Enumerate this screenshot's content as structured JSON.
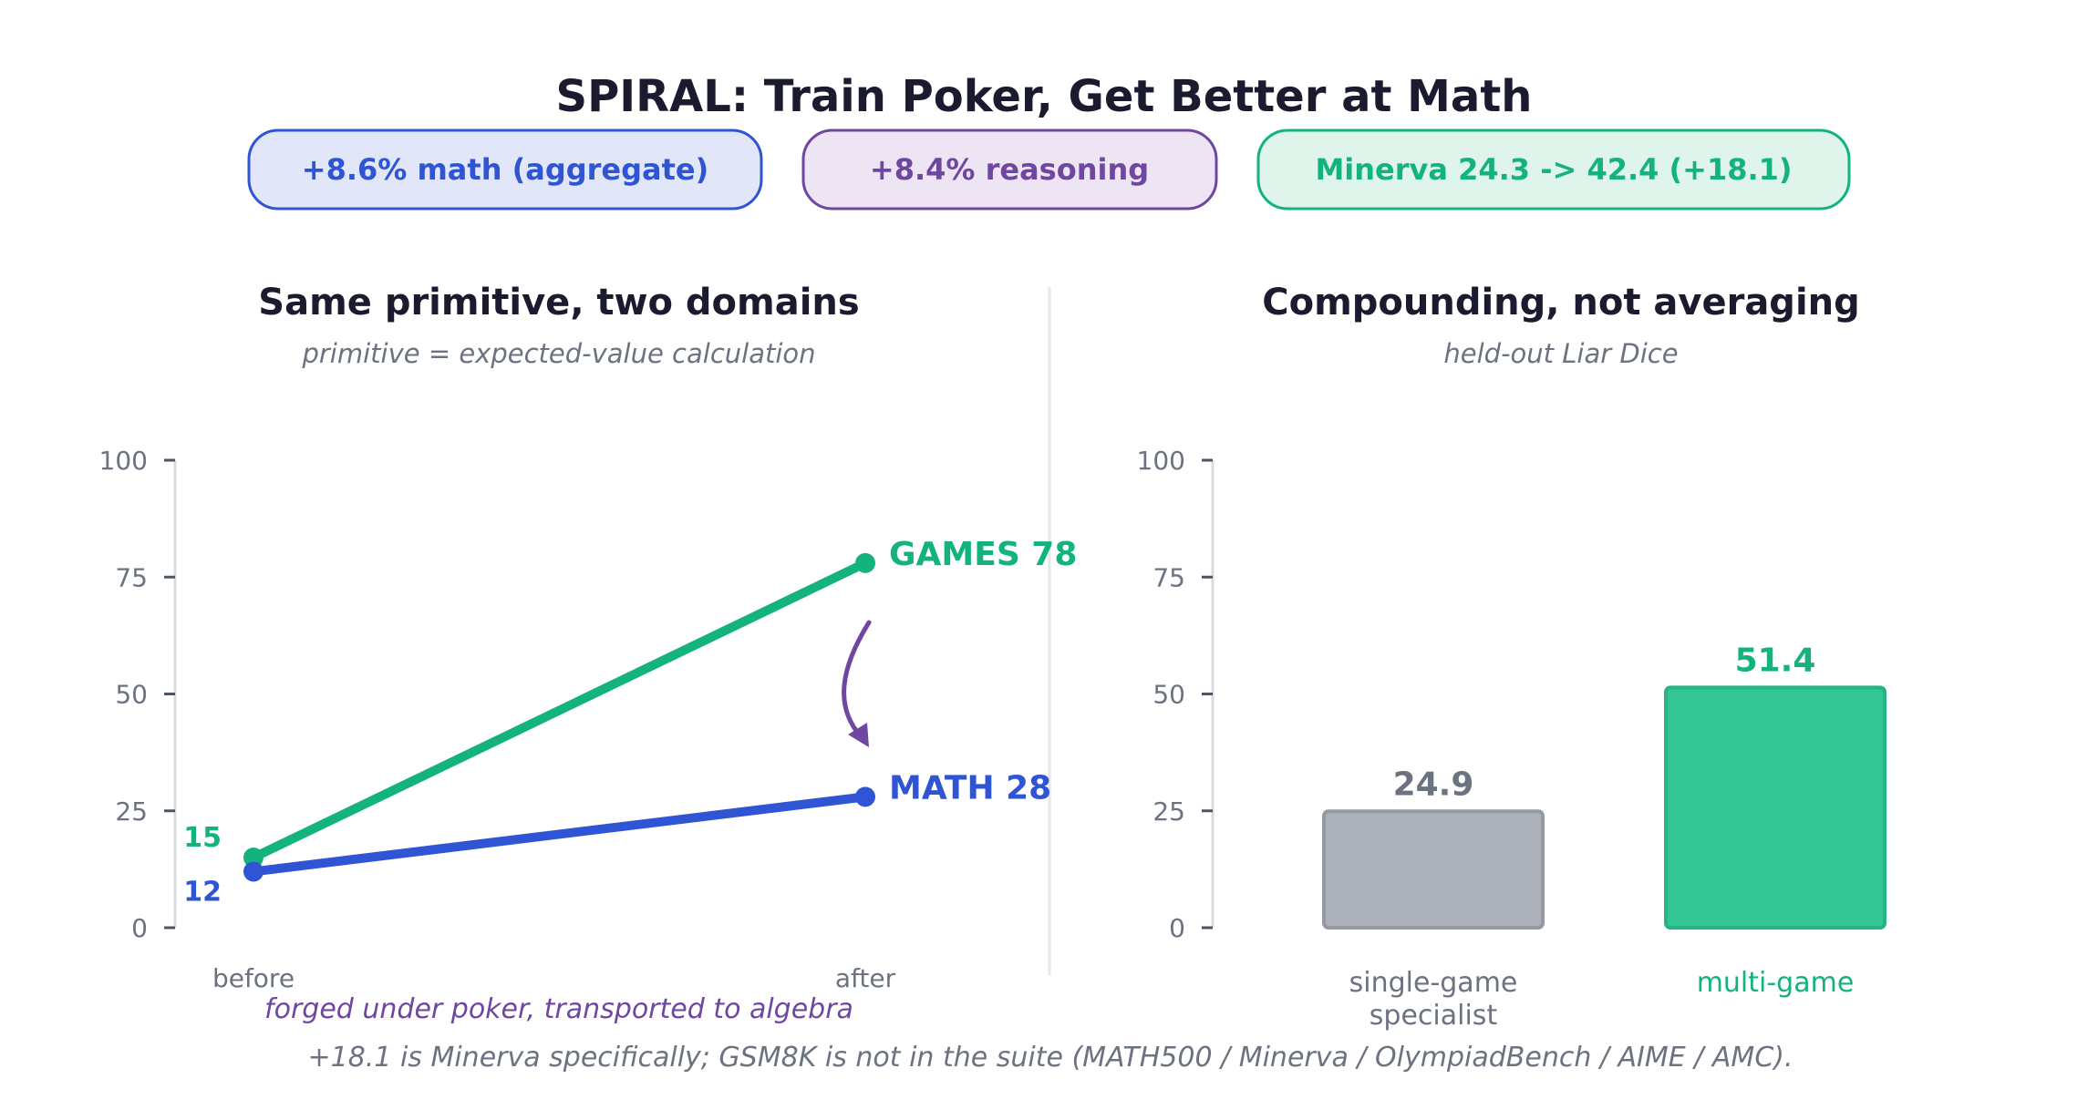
{
  "title": "SPIRAL: Train Poker, Get Better at Math",
  "badges": [
    {
      "label": "+8.6% math (aggregate)",
      "color": "#2f55d4",
      "fill": "#e1e7f8"
    },
    {
      "label": "+8.4% reasoning",
      "color": "#6f47a0",
      "fill": "#ede5f3"
    },
    {
      "label": "Minerva 24.3 -> 42.4 (+18.1)",
      "color": "#14b37d",
      "fill": "#dff5ec"
    }
  ],
  "left_panel": {
    "title": "Same primitive, two domains",
    "subtitle": "primitive = expected-value calculation",
    "annotation": "forged under poker, transported to algebra"
  },
  "right_panel": {
    "title": "Compounding, not averaging",
    "subtitle": "held-out Liar Dice"
  },
  "footnote": "+18.1 is Minerva specifically; GSM8K is not in the suite (MATH500 / Minerva / OlympiadBench / AIME / AMC).",
  "colors": {
    "games": "#14b37d",
    "math": "#2f55d4",
    "purple": "#6f47a0",
    "gray": "#6b7280"
  },
  "chart_data": [
    {
      "type": "line",
      "x": [
        "before",
        "after"
      ],
      "ylim": [
        0,
        100
      ],
      "yticks": [
        0,
        25,
        50,
        75,
        100
      ],
      "series": [
        {
          "name": "GAMES",
          "values": [
            15,
            78
          ],
          "color": "#14b37d"
        },
        {
          "name": "MATH",
          "values": [
            12,
            28
          ],
          "color": "#2f55d4"
        }
      ]
    },
    {
      "type": "bar",
      "categories": [
        "single-game\nspecialist",
        "multi-game"
      ],
      "values": [
        24.9,
        51.4
      ],
      "ylim": [
        0,
        100
      ],
      "yticks": [
        0,
        25,
        50,
        75,
        100
      ],
      "colors": [
        "#adb1ba",
        "#34c594"
      ],
      "label_colors": [
        "#6b7280",
        "#14b37d"
      ]
    }
  ]
}
